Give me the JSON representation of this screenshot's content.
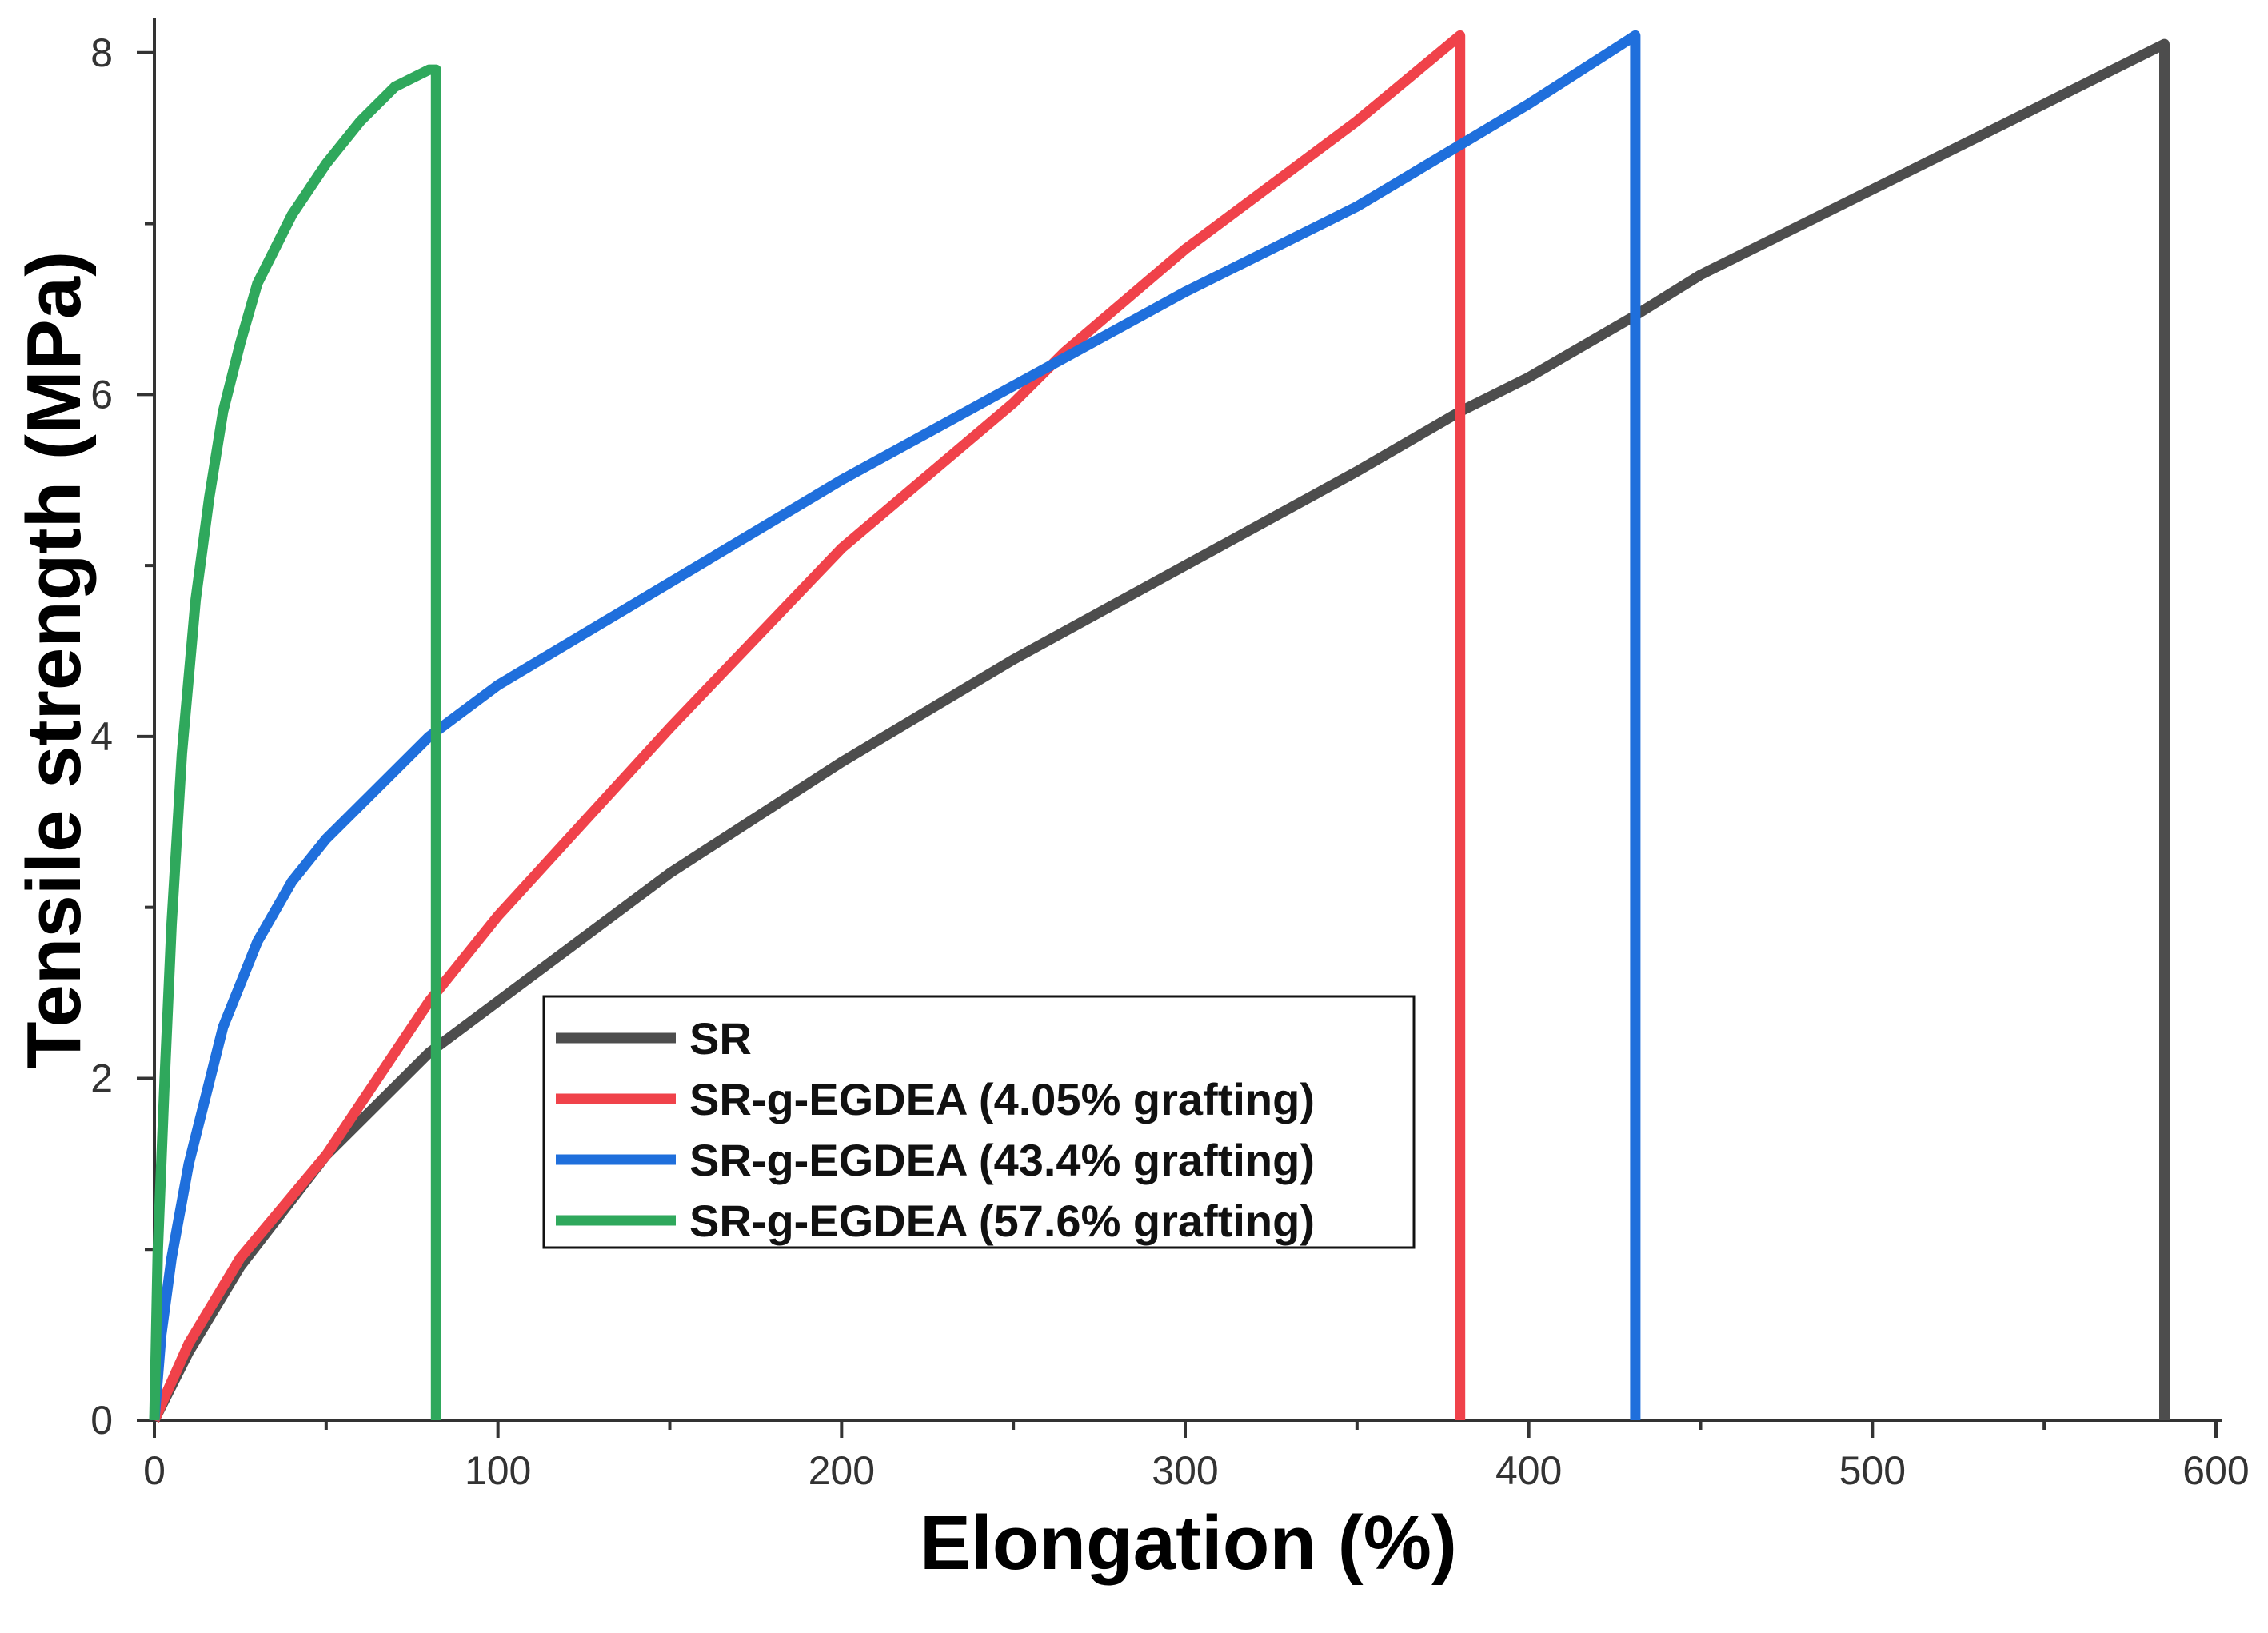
{
  "chart_data": {
    "type": "line",
    "title": "",
    "xlabel": "Elongation (%)",
    "ylabel": "Tensile strength (MPa)",
    "xlim": [
      0,
      600
    ],
    "ylim": [
      0,
      8.2
    ],
    "xticks": [
      0,
      100,
      200,
      300,
      400,
      500,
      600
    ],
    "yticks": [
      0,
      2,
      4,
      6,
      8
    ],
    "x_tick_labels": [
      "0",
      "100",
      "200",
      "300",
      "400",
      "500",
      "600"
    ],
    "y_tick_labels": [
      "0",
      "2",
      "4",
      "6",
      "8"
    ],
    "grid": false,
    "legend_position": "center-bottom",
    "series": [
      {
        "name": "SR",
        "color": "#4d4d4d",
        "x": [
          0,
          10,
          25,
          50,
          80,
          100,
          150,
          200,
          250,
          300,
          350,
          380,
          400,
          430,
          450,
          500,
          550,
          585,
          585
        ],
        "y": [
          0,
          0.4,
          0.9,
          1.55,
          2.15,
          2.45,
          3.2,
          3.85,
          4.45,
          5.0,
          5.55,
          5.9,
          6.1,
          6.45,
          6.7,
          7.2,
          7.7,
          8.05,
          0
        ]
      },
      {
        "name": "SR-g-EGDEA (4.05% grafting)",
        "color": "#f0424a",
        "x": [
          0,
          10,
          25,
          50,
          80,
          100,
          150,
          200,
          250,
          265,
          300,
          350,
          380,
          380
        ],
        "y": [
          0,
          0.45,
          0.95,
          1.55,
          2.45,
          2.95,
          4.05,
          5.1,
          5.95,
          6.25,
          6.85,
          7.6,
          8.1,
          0
        ]
      },
      {
        "name": "SR-g-EGDEA (43.4% grafting)",
        "color": "#1f6fdc",
        "x": [
          0,
          2,
          5,
          10,
          20,
          30,
          40,
          50,
          60,
          80,
          100,
          150,
          200,
          250,
          300,
          350,
          400,
          431,
          431
        ],
        "y": [
          0,
          0.5,
          0.95,
          1.5,
          2.3,
          2.8,
          3.15,
          3.4,
          3.6,
          4.0,
          4.3,
          4.9,
          5.5,
          6.05,
          6.6,
          7.1,
          7.7,
          8.1,
          0
        ]
      },
      {
        "name": "SR-g-EGDEA (57.6% grafting)",
        "color": "#2fa85c",
        "x": [
          0,
          1,
          3,
          5,
          8,
          12,
          16,
          20,
          25,
          30,
          40,
          50,
          60,
          70,
          80,
          82,
          82
        ],
        "y": [
          0,
          1.0,
          2.0,
          2.9,
          3.9,
          4.8,
          5.4,
          5.9,
          6.3,
          6.65,
          7.05,
          7.35,
          7.6,
          7.8,
          7.9,
          7.9,
          0
        ]
      }
    ]
  }
}
